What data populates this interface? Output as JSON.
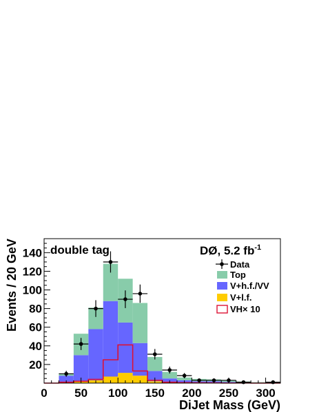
{
  "chart_data": {
    "type": "bar",
    "stacked": true,
    "title": "",
    "tag_label": "double tag",
    "experiment_label": "DØ, 5.2 fb",
    "experiment_label_sup": "-1",
    "xlabel": "DiJet Mass (GeV)",
    "ylabel": "Events / 20 GeV",
    "xlim": [
      0,
      320
    ],
    "ylim": [
      0,
      155
    ],
    "x_ticks": [
      0,
      50,
      100,
      150,
      200,
      250,
      300
    ],
    "y_ticks": [
      20,
      40,
      60,
      80,
      100,
      120,
      140
    ],
    "bin_edges": [
      0,
      20,
      40,
      60,
      80,
      100,
      120,
      140,
      160,
      180,
      200,
      220,
      240,
      260,
      280,
      300,
      320
    ],
    "series": [
      {
        "name": "V+l.f.",
        "color": "#ffcc00",
        "values": [
          0,
          1,
          2,
          3,
          7,
          11,
          8,
          2,
          1,
          1,
          0.5,
          0.5,
          0.3,
          0.2,
          0.1,
          0.1
        ]
      },
      {
        "name": "V+h.f./VV",
        "color": "#6666ff",
        "values": [
          0,
          7,
          28,
          55,
          81,
          54,
          35,
          11,
          4,
          2,
          1.5,
          1.5,
          1,
          0.5,
          0.3,
          0.2
        ]
      },
      {
        "name": "Top",
        "color": "#88ccaa",
        "values": [
          0,
          2,
          23,
          23,
          40,
          47,
          43,
          15,
          7,
          3,
          2.5,
          2,
          1.5,
          1,
          0.6,
          0.4
        ]
      }
    ],
    "signal": {
      "name": "VH× 10",
      "color": "#dd1133",
      "values": [
        0,
        1,
        2,
        4,
        25,
        41,
        13,
        3,
        1,
        0.5,
        0.3,
        0.2,
        0.1,
        0.1,
        0,
        0
      ]
    },
    "data": {
      "name": "Data",
      "x": [
        30,
        50,
        70,
        90,
        110,
        130,
        150,
        170,
        190,
        210,
        230,
        250,
        270,
        310
      ],
      "y": [
        10,
        42,
        80,
        130,
        90,
        96,
        31,
        14,
        8,
        3,
        3,
        3,
        1,
        1
      ],
      "err": [
        3.2,
        6.5,
        9,
        11.4,
        9.5,
        9.8,
        5.6,
        3.7,
        2.8,
        1.7,
        1.7,
        1.7,
        1,
        1
      ]
    },
    "legend": {
      "position": "top-right",
      "entries": [
        {
          "label": "Data",
          "kind": "marker"
        },
        {
          "label": "Top",
          "kind": "fill",
          "color": "#88ccaa"
        },
        {
          "label": "V+h.f./VV",
          "kind": "fill",
          "color": "#6666ff"
        },
        {
          "label": "V+l.f.",
          "kind": "fill",
          "color": "#ffcc00"
        },
        {
          "label": "VH× 10",
          "kind": "line",
          "color": "#dd1133"
        }
      ]
    }
  }
}
